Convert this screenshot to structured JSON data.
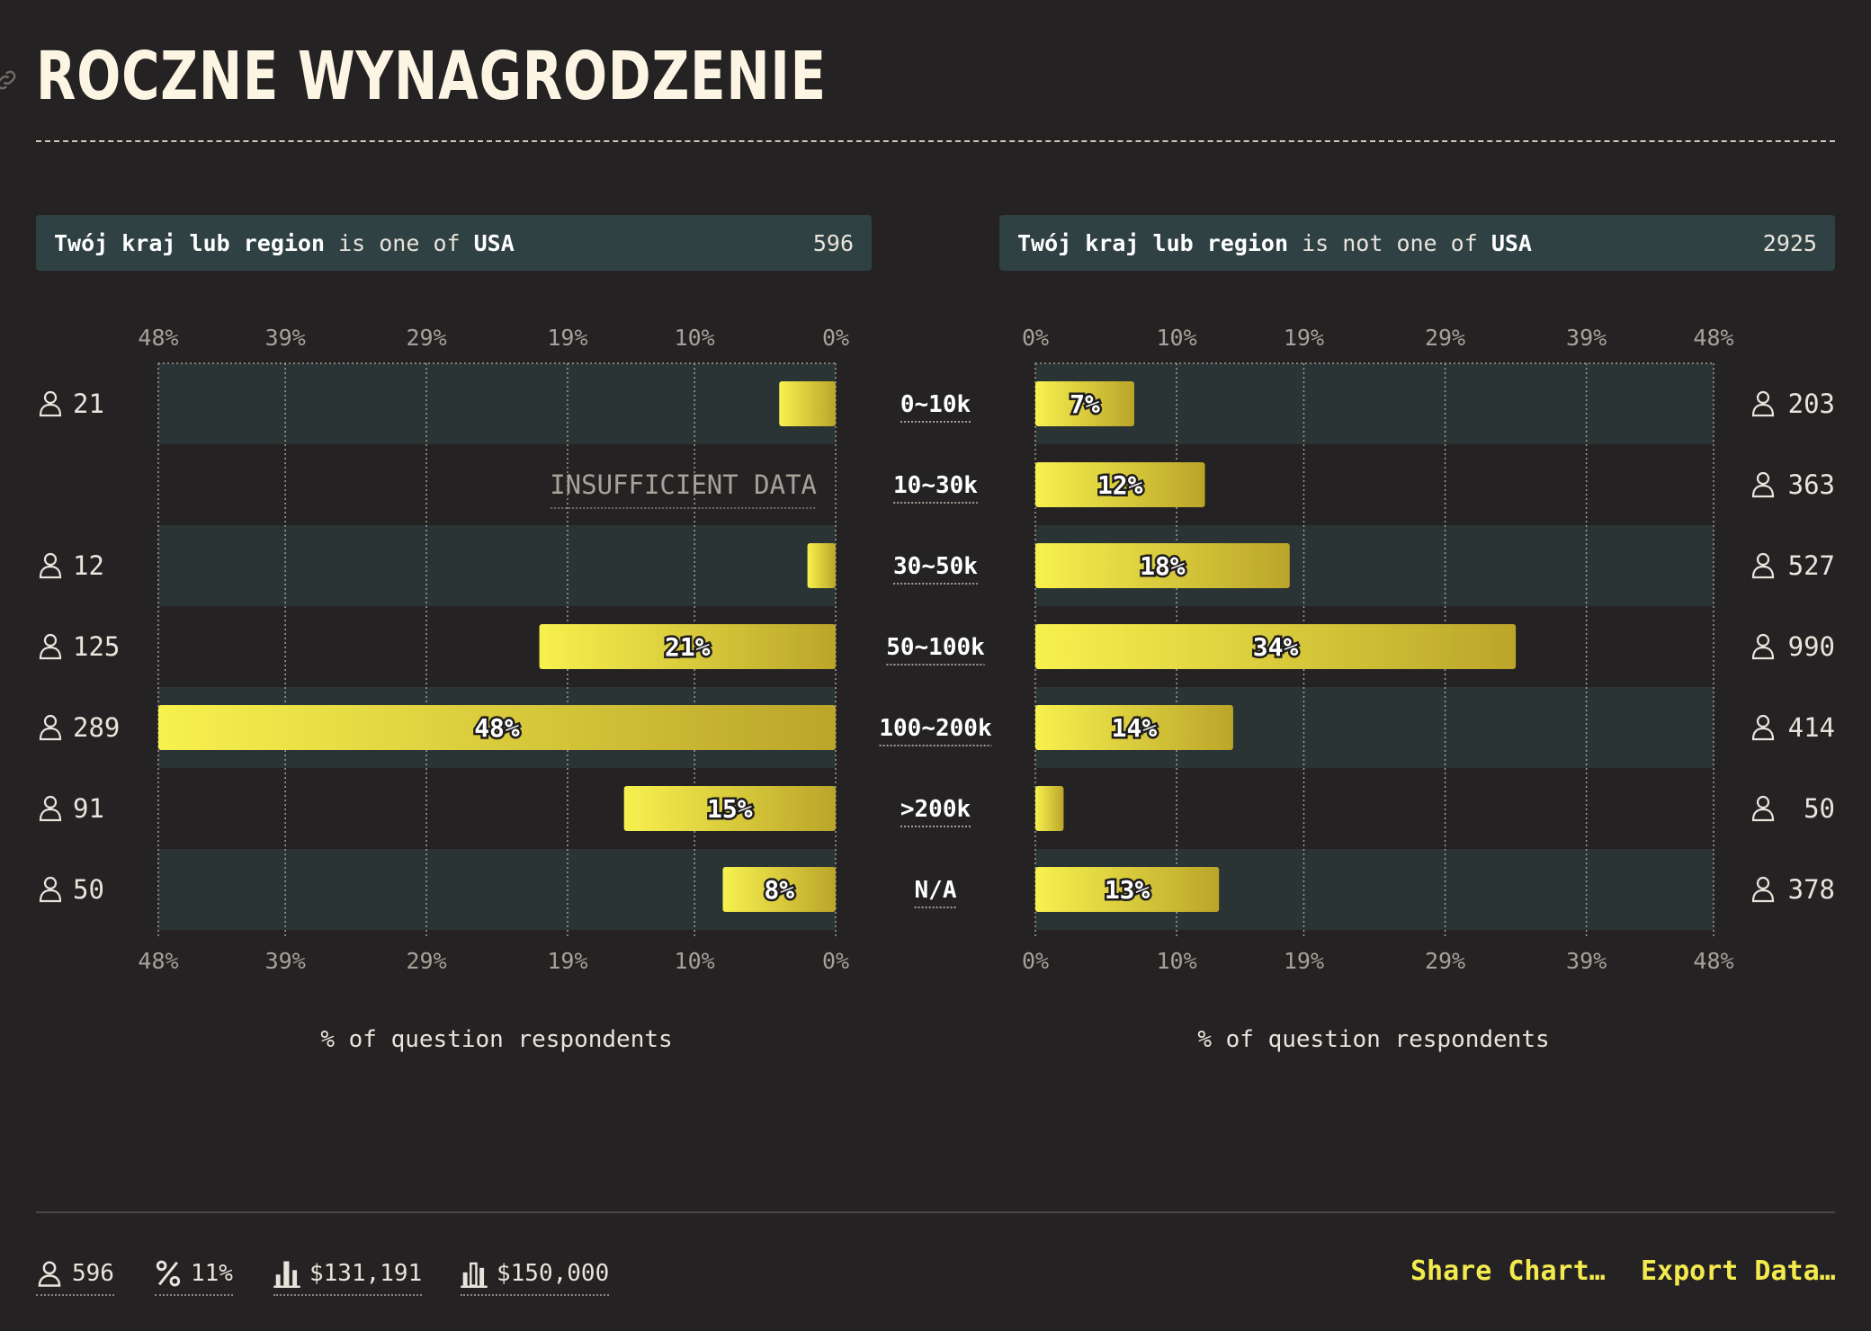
{
  "page": {
    "title": "ROCZNE WYNAGRODZENIE",
    "link_icon": "link-icon"
  },
  "filters": {
    "left": {
      "field": "Twój kraj lub region",
      "op": "is one of",
      "value": "USA",
      "count": "596"
    },
    "right": {
      "field": "Twój kraj lub region",
      "op": "is not one of",
      "value": "USA",
      "count": "2925"
    }
  },
  "chart_data": {
    "type": "bar",
    "orientation": "horizontal-butterfly",
    "categories": [
      "0~10k",
      "10~30k",
      "30~50k",
      "50~100k",
      "100~200k",
      ">200k",
      "N/A"
    ],
    "tick_labels": [
      "0%",
      "10%",
      "19%",
      "29%",
      "39%",
      "48%"
    ],
    "xlim": [
      0,
      48
    ],
    "xlabel": "% of question respondents",
    "grid": true,
    "respondent_icon": "person-icon",
    "colors": {
      "bar_start": "#f7f14e",
      "bar_end": "#bba52a",
      "row_band": "#2b3435",
      "grid": "#a29d96"
    },
    "series": [
      {
        "side": "left",
        "values": [
          4,
          null,
          2,
          21,
          48,
          15,
          8
        ],
        "labels": [
          "",
          "INSUFFICIENT DATA",
          "",
          "21%",
          "48%",
          "15%",
          "8%"
        ],
        "counts": [
          "21",
          "",
          "12",
          "125",
          "289",
          "91",
          "50"
        ]
      },
      {
        "side": "right",
        "values": [
          7,
          12,
          18,
          34,
          14,
          2,
          13
        ],
        "labels": [
          "7%",
          "12%",
          "18%",
          "34%",
          "14%",
          "",
          "13%"
        ],
        "counts": [
          "203",
          "363",
          "527",
          "990",
          "414",
          "50",
          "378"
        ]
      }
    ]
  },
  "footer": {
    "stats": [
      {
        "icon": "person-icon",
        "value": "596"
      },
      {
        "icon": "percent-icon",
        "value": "11%"
      },
      {
        "icon": "mean-bar-icon",
        "value": "$131,191"
      },
      {
        "icon": "median-bar-icon",
        "value": "$150,000"
      }
    ],
    "share_label": "Share Chart…",
    "export_label": "Export Data…"
  }
}
